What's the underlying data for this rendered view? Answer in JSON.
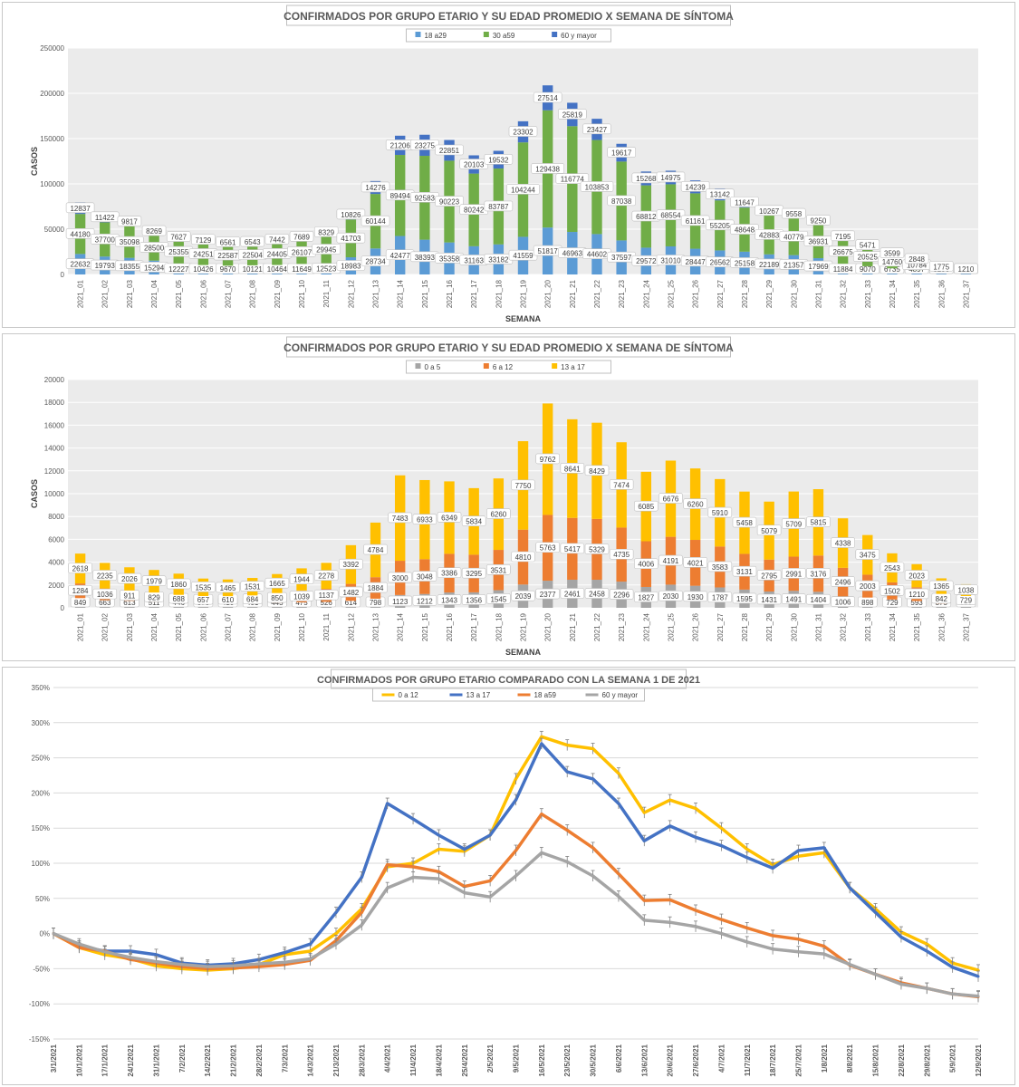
{
  "charts": {
    "c1": {
      "title": "CONFIRMADOS POR GRUPO ETARIO Y SU EDAD PROMEDIO X SEMANA DE SÍNTOMA",
      "xlabel": "SEMANA",
      "ylabel": "CASOS"
    },
    "c2": {
      "title": "CONFIRMADOS POR GRUPO ETARIO Y SU EDAD PROMEDIO X SEMANA DE SÍNTOMA",
      "xlabel": "SEMANA",
      "ylabel": "CASOS"
    },
    "c3": {
      "title": "CONFIRMADOS POR GRUPO ETARIO COMPARADO CON LA SEMANA 1 DE 2021"
    }
  },
  "chart_data": [
    {
      "type": "bar",
      "stacked": true,
      "title": "CONFIRMADOS POR GRUPO ETARIO Y SU EDAD PROMEDIO X SEMANA DE SÍNTOMA",
      "xlabel": "SEMANA",
      "ylabel": "CASOS",
      "ylim": [
        0,
        250000
      ],
      "yticks": [
        "0",
        "50000",
        "100000",
        "150000",
        "200000",
        "250000"
      ],
      "grid": true,
      "legend_position": "top",
      "categories": [
        "2021_01",
        "2021_02",
        "2021_03",
        "2021_04",
        "2021_05",
        "2021_06",
        "2021_07",
        "2021_08",
        "2021_09",
        "2021_10",
        "2021_11",
        "2021_12",
        "2021_13",
        "2021_14",
        "2021_15",
        "2021_16",
        "2021_17",
        "2021_18",
        "2021_19",
        "2021_20",
        "2021_21",
        "2021_22",
        "2021_23",
        "2021_24",
        "2021_25",
        "2021_26",
        "2021_27",
        "2021_28",
        "2021_29",
        "2021_30",
        "2021_31",
        "2021_32",
        "2021_33",
        "2021_34",
        "2021_35",
        "2021_36",
        "2021_37"
      ],
      "series": [
        {
          "name": "18 a29",
          "color": "#5b9bd5",
          "values": [
            22632,
            19793,
            18355,
            15294,
            12227,
            10426,
            9670,
            10121,
            10464,
            11649,
            12523,
            18983,
            28734,
            42477,
            38393,
            35358,
            31163,
            33182,
            41559,
            51817,
            46963,
            44602,
            37597,
            29572,
            31010,
            28447,
            26562,
            25158,
            22189,
            21357,
            17969,
            11884,
            9070,
            6735,
            4897,
            2470,
            1210
          ]
        },
        {
          "name": "30 a59",
          "color": "#70ad47",
          "values": [
            44180,
            37700,
            35098,
            28500,
            25355,
            24251,
            22587,
            22504,
            24405,
            26107,
            29945,
            41703,
            60144,
            89494,
            92583,
            90223,
            80242,
            83787,
            104244,
            129438,
            116774,
            103853,
            87038,
            68812,
            68554,
            61161,
            55205,
            48648,
            42883,
            40779,
            36931,
            26675,
            20525,
            14760,
            10784,
            5290,
            2710
          ]
        },
        {
          "name": "60 y mayor",
          "color": "#4472c4",
          "values": [
            12837,
            11422,
            9817,
            8269,
            7627,
            7129,
            6561,
            6543,
            7442,
            7689,
            8329,
            10826,
            14276,
            21206,
            23275,
            22851,
            20103,
            19532,
            23302,
            27514,
            25819,
            23427,
            19617,
            15268,
            14975,
            14239,
            13142,
            11647,
            10267,
            9558,
            9250,
            7195,
            5471,
            3599,
            2848,
            1775,
            1210
          ]
        }
      ]
    },
    {
      "type": "bar",
      "stacked": true,
      "title": "CONFIRMADOS POR GRUPO ETARIO Y SU EDAD PROMEDIO X SEMANA DE SÍNTOMA",
      "xlabel": "SEMANA",
      "ylabel": "CASOS",
      "ylim": [
        0,
        20000
      ],
      "yticks": [
        "0",
        "2000",
        "4000",
        "6000",
        "8000",
        "10000",
        "12000",
        "14000",
        "16000",
        "18000",
        "20000"
      ],
      "grid": true,
      "legend_position": "top",
      "categories": [
        "2021_01",
        "2021_02",
        "2021_03",
        "2021_04",
        "2021_05",
        "2021_06",
        "2021_07",
        "2021_08",
        "2021_09",
        "2021_10",
        "2021_11",
        "2021_12",
        "2021_13",
        "2021_14",
        "2021_15",
        "2021_16",
        "2021_17",
        "2021_18",
        "2021_19",
        "2021_20",
        "2021_21",
        "2021_22",
        "2021_23",
        "2021_24",
        "2021_25",
        "2021_26",
        "2021_27",
        "2021_28",
        "2021_29",
        "2021_30",
        "2021_31",
        "2021_32",
        "2021_33",
        "2021_34",
        "2021_35",
        "2021_36",
        "2021_37"
      ],
      "series": [
        {
          "name": "0 a 5",
          "color": "#a5a5a5",
          "values": [
            849,
            663,
            613,
            511,
            446,
            373,
            410,
            401,
            443,
            475,
            526,
            614,
            798,
            1123,
            1212,
            1343,
            1356,
            1545,
            2039,
            2377,
            2461,
            2458,
            2296,
            1827,
            2030,
            1930,
            1787,
            1595,
            1431,
            1491,
            1404,
            1006,
            898,
            729,
            593,
            375,
            303
          ]
        },
        {
          "name": "6 a 12",
          "color": "#ed7d31",
          "values": [
            1284,
            1036,
            911,
            829,
            688,
            657,
            610,
            684,
            850,
            1039,
            1137,
            1482,
            1884,
            3000,
            3048,
            3386,
            3295,
            3531,
            4810,
            5763,
            5417,
            5329,
            4735,
            4006,
            4191,
            4021,
            3583,
            3131,
            2795,
            2991,
            3176,
            2496,
            2003,
            1502,
            1210,
            842,
            729
          ]
        },
        {
          "name": "13 a 17",
          "color": "#ffc000",
          "values": [
            2618,
            2235,
            2026,
            1979,
            1860,
            1535,
            1465,
            1531,
            1665,
            1944,
            2278,
            3392,
            4784,
            7483,
            6933,
            6349,
            5834,
            6260,
            7750,
            9762,
            8641,
            8429,
            7474,
            6085,
            6676,
            6260,
            5910,
            5458,
            5079,
            5709,
            5815,
            4338,
            3475,
            2543,
            2023,
            1365,
            1038
          ]
        }
      ]
    },
    {
      "type": "line",
      "title": "CONFIRMADOS POR GRUPO ETARIO COMPARADO CON LA SEMANA 1 DE 2021",
      "xlabel": "",
      "ylabel": "",
      "ylim": [
        -150,
        350
      ],
      "yticks": [
        "-150%",
        "-100%",
        "-50%",
        "0%",
        "50%",
        "100%",
        "150%",
        "200%",
        "250%",
        "300%",
        "350%"
      ],
      "grid": true,
      "legend_position": "top",
      "x": [
        "3/1/2021",
        "10/1/2021",
        "17/1/2021",
        "24/1/2021",
        "31/1/2021",
        "7/2/2021",
        "14/2/2021",
        "21/2/2021",
        "28/2/2021",
        "7/3/2021",
        "14/3/2021",
        "21/3/2021",
        "28/3/2021",
        "4/4/2021",
        "11/4/2021",
        "18/4/2021",
        "25/4/2021",
        "2/5/2021",
        "9/5/2021",
        "16/5/2021",
        "23/5/2021",
        "30/5/2021",
        "6/6/2021",
        "13/6/2021",
        "20/6/2021",
        "27/6/2021",
        "4/7/2021",
        "11/7/2021",
        "18/7/2021",
        "25/7/2021",
        "1/8/2021",
        "8/8/2021",
        "15/8/2021",
        "22/8/2021",
        "29/8/2021",
        "5/9/2021",
        "12/9/2021"
      ],
      "series": [
        {
          "name": "0 a 12",
          "color": "#ffc000",
          "values": [
            0,
            -20,
            -30,
            -36,
            -46,
            -50,
            -52,
            -50,
            -44,
            -30,
            -25,
            0,
            35,
            95,
            100,
            120,
            117,
            140,
            220,
            280,
            268,
            263,
            228,
            172,
            190,
            178,
            150,
            120,
            98,
            110,
            115,
            65,
            35,
            2,
            -15,
            -42,
            -52
          ]
        },
        {
          "name": "13 a 17",
          "color": "#4472c4",
          "values": [
            0,
            -18,
            -25,
            -25,
            -30,
            -42,
            -45,
            -43,
            -37,
            -27,
            -15,
            30,
            80,
            185,
            163,
            140,
            120,
            140,
            190,
            270,
            230,
            220,
            185,
            132,
            153,
            137,
            125,
            108,
            93,
            118,
            122,
            65,
            30,
            -5,
            -25,
            -48,
            -61
          ]
        },
        {
          "name": "18 a59",
          "color": "#ed7d31",
          "values": [
            0,
            -20,
            -25,
            -37,
            -42,
            -47,
            -50,
            -49,
            -47,
            -44,
            -38,
            -10,
            30,
            98,
            95,
            88,
            67,
            75,
            118,
            170,
            147,
            122,
            85,
            47,
            48,
            33,
            20,
            8,
            -3,
            -8,
            -18,
            -45,
            -58,
            -70,
            -78,
            -86,
            -90
          ]
        },
        {
          "name": "60 y mayor",
          "color": "#a5a5a5",
          "values": [
            0,
            -15,
            -26,
            -34,
            -40,
            -44,
            -47,
            -46,
            -43,
            -41,
            -36,
            -15,
            12,
            65,
            80,
            78,
            58,
            52,
            82,
            115,
            102,
            82,
            53,
            19,
            16,
            10,
            0,
            -12,
            -22,
            -26,
            -29,
            -44,
            -58,
            -72,
            -78,
            -86,
            -89
          ]
        }
      ]
    }
  ]
}
